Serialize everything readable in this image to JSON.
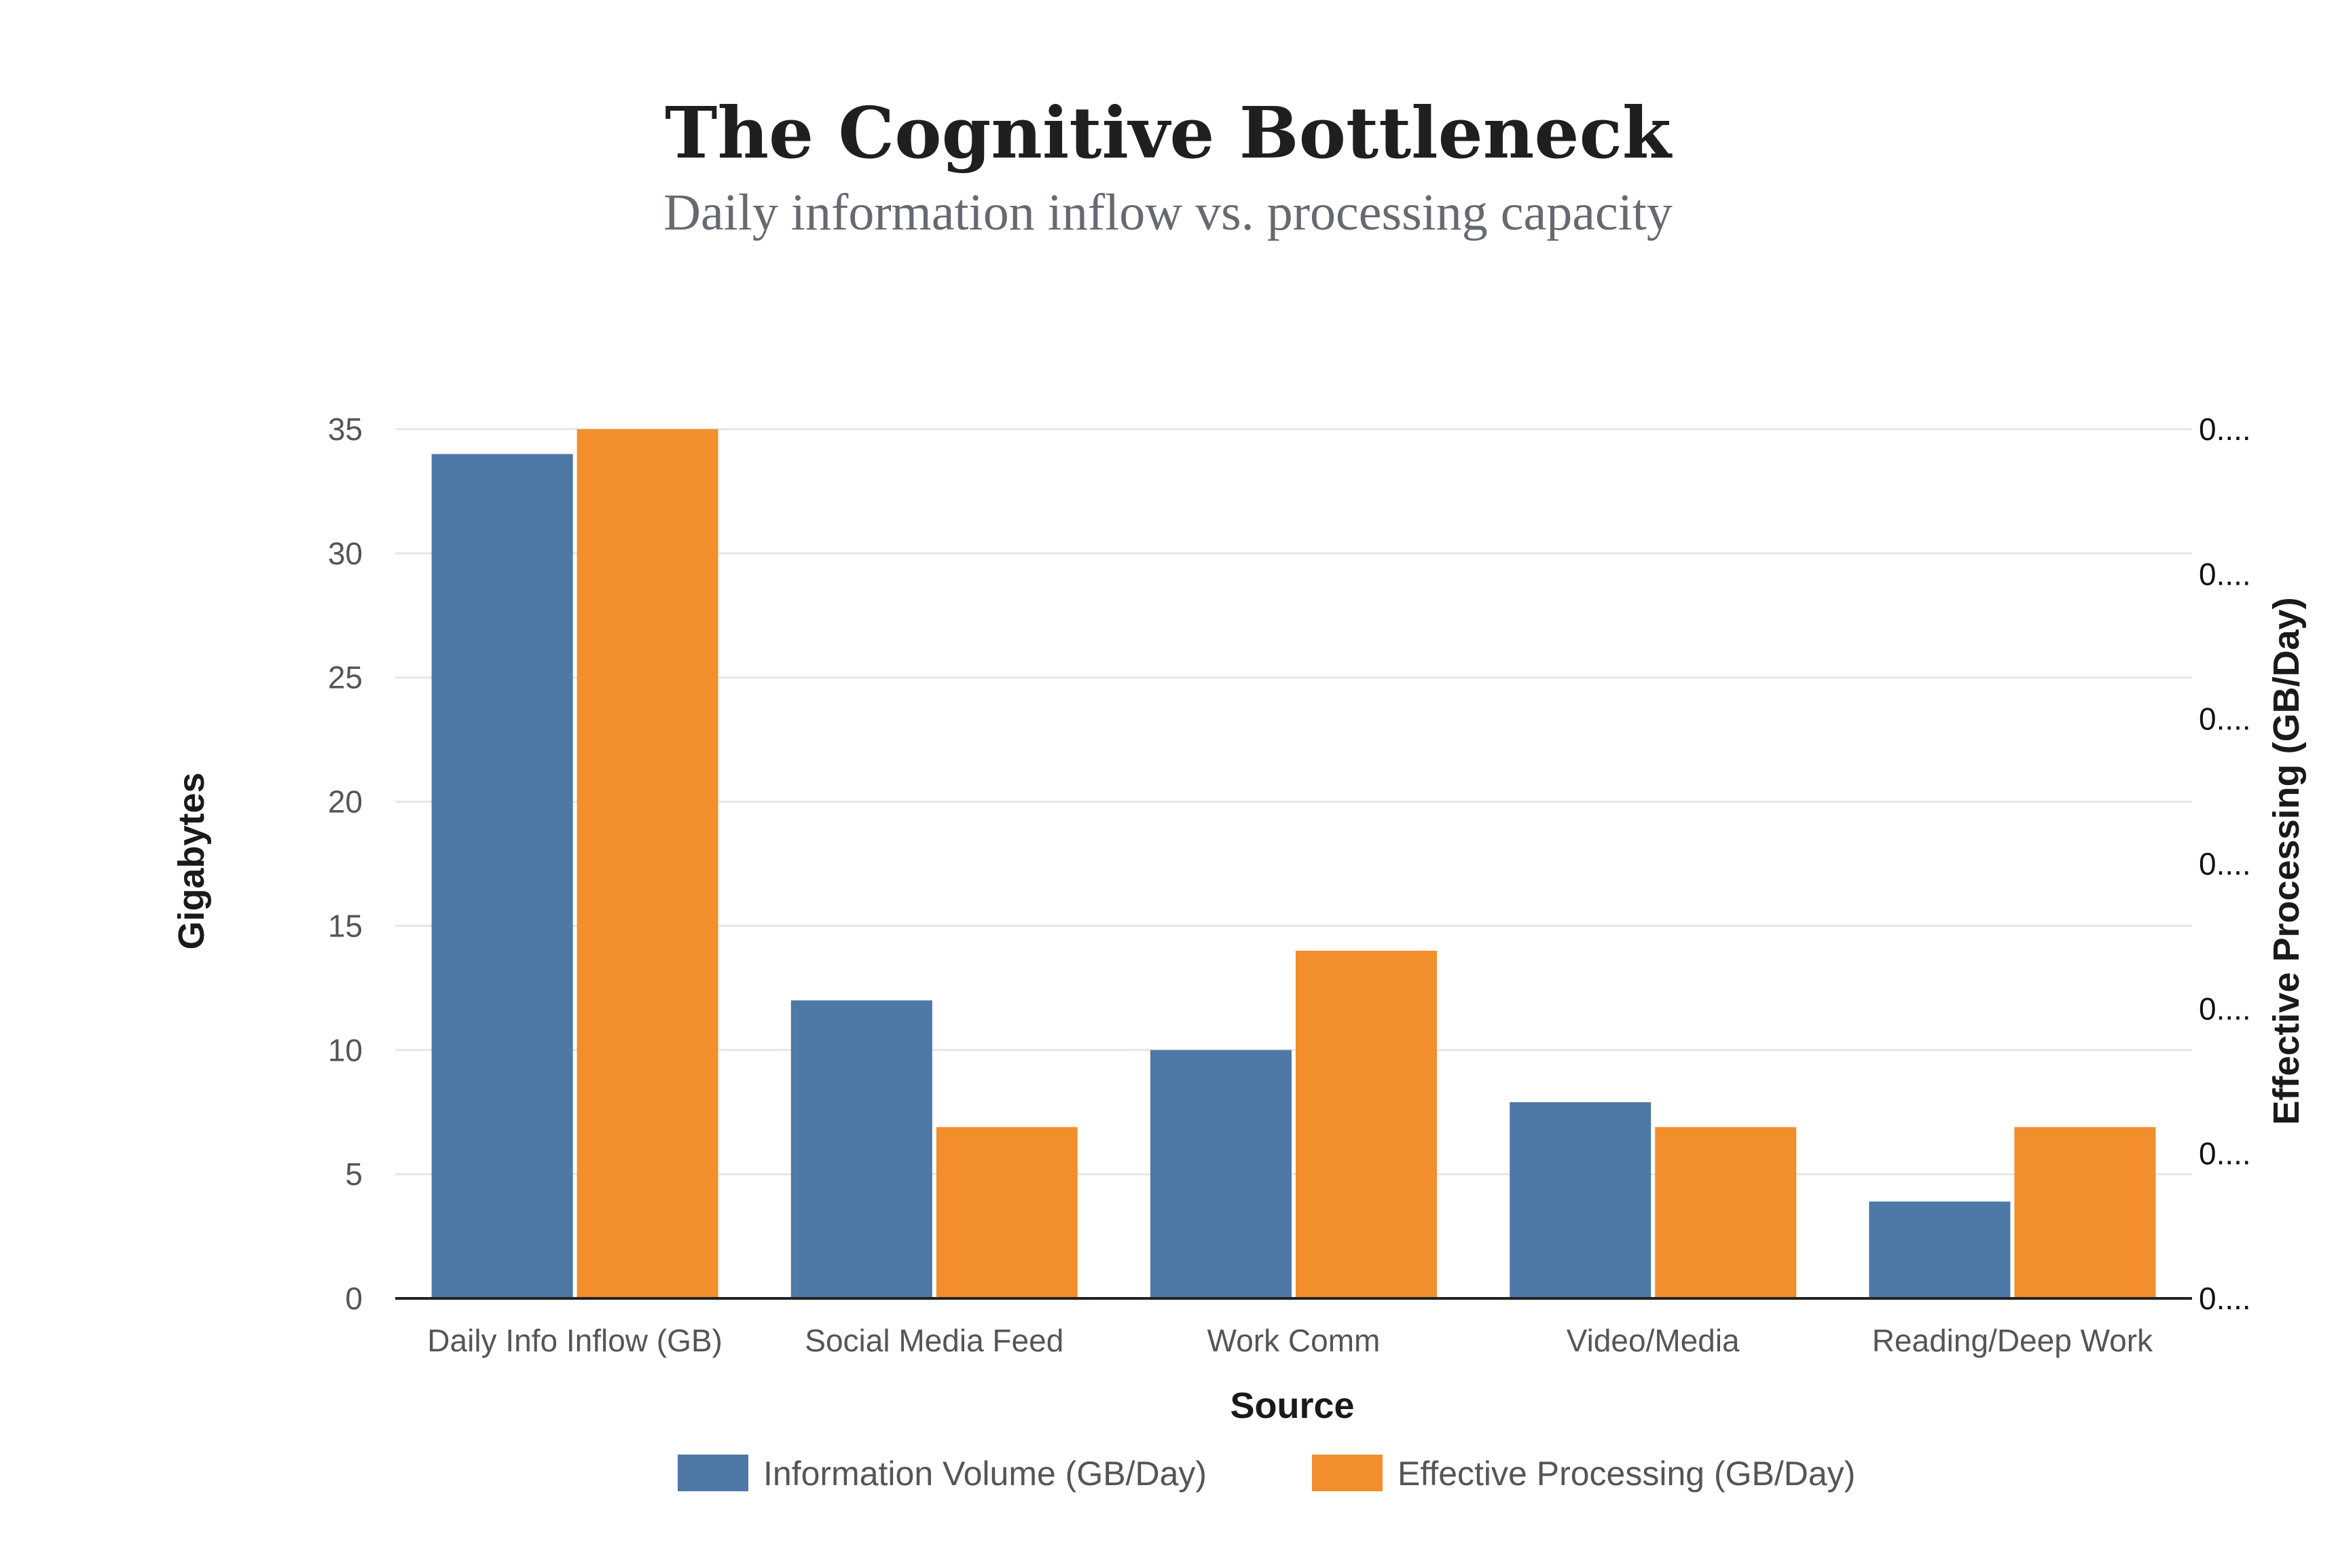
{
  "chart_data": {
    "type": "bar",
    "title": "The Cognitive Bottleneck",
    "subtitle": "Daily information inflow vs. processing capacity",
    "xlabel": "Source",
    "ylabel": "Gigabytes",
    "y2label": "Effective Processing (GB/Day)",
    "categories": [
      "Daily Info Inflow (GB)",
      "Social Media Feed",
      "Work Comm",
      "Video/Media",
      "Reading/Deep Work"
    ],
    "series": [
      {
        "name": "Information Volume (GB/Day)",
        "values": [
          34,
          12,
          10,
          7.9,
          3.9
        ],
        "color": "#4e78a6"
      },
      {
        "name": "Effective Processing (GB/Day)",
        "values": [
          35,
          6.9,
          14,
          6.9,
          6.9
        ],
        "color": "#f28e2c"
      }
    ],
    "ylim": [
      0,
      35
    ],
    "yticks": [
      "0",
      "5",
      "10",
      "15",
      "20",
      "25",
      "30",
      "35"
    ],
    "y2ticks": [
      "0....",
      "0....",
      "0....",
      "0....",
      "0....",
      "0....",
      "0...."
    ],
    "grid": true,
    "legend_position": "bottom"
  }
}
